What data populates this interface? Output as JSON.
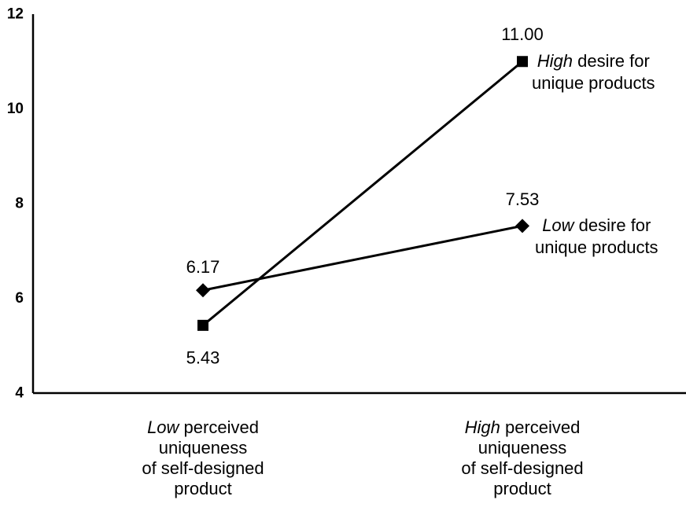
{
  "chart_data": {
    "type": "line",
    "categories": [
      "Low perceived uniqueness of self-designed product",
      "High perceived uniqueness of self-designed product"
    ],
    "category_labels": [
      {
        "emphasis": "Low",
        "line1_rest": " perceived",
        "line2": "uniqueness",
        "line3": "of self-designed",
        "line4": "product"
      },
      {
        "emphasis": "High",
        "line1_rest": " perceived",
        "line2": "uniqueness",
        "line3": "of self-designed",
        "line4": "product"
      }
    ],
    "series": [
      {
        "name": "High desire for unique products",
        "name_emphasis": "High",
        "name_line1_rest": " desire for",
        "name_line2": "unique products",
        "marker": "square",
        "values": [
          5.43,
          11.0
        ],
        "value_labels": [
          "5.43",
          "11.00"
        ]
      },
      {
        "name": "Low desire for unique products",
        "name_emphasis": "Low",
        "name_line1_rest": " desire for",
        "name_line2": "unique products",
        "marker": "diamond",
        "values": [
          6.17,
          7.53
        ],
        "value_labels": [
          "6.17",
          "7.53"
        ]
      }
    ],
    "ylim": [
      4,
      12
    ],
    "yticks": [
      4,
      6,
      8,
      10,
      12
    ],
    "ytick_labels": [
      "4",
      "6",
      "8",
      "10",
      "12"
    ],
    "title": "",
    "xlabel": "",
    "ylabel": "",
    "grid": false,
    "legend": "inline-right"
  }
}
